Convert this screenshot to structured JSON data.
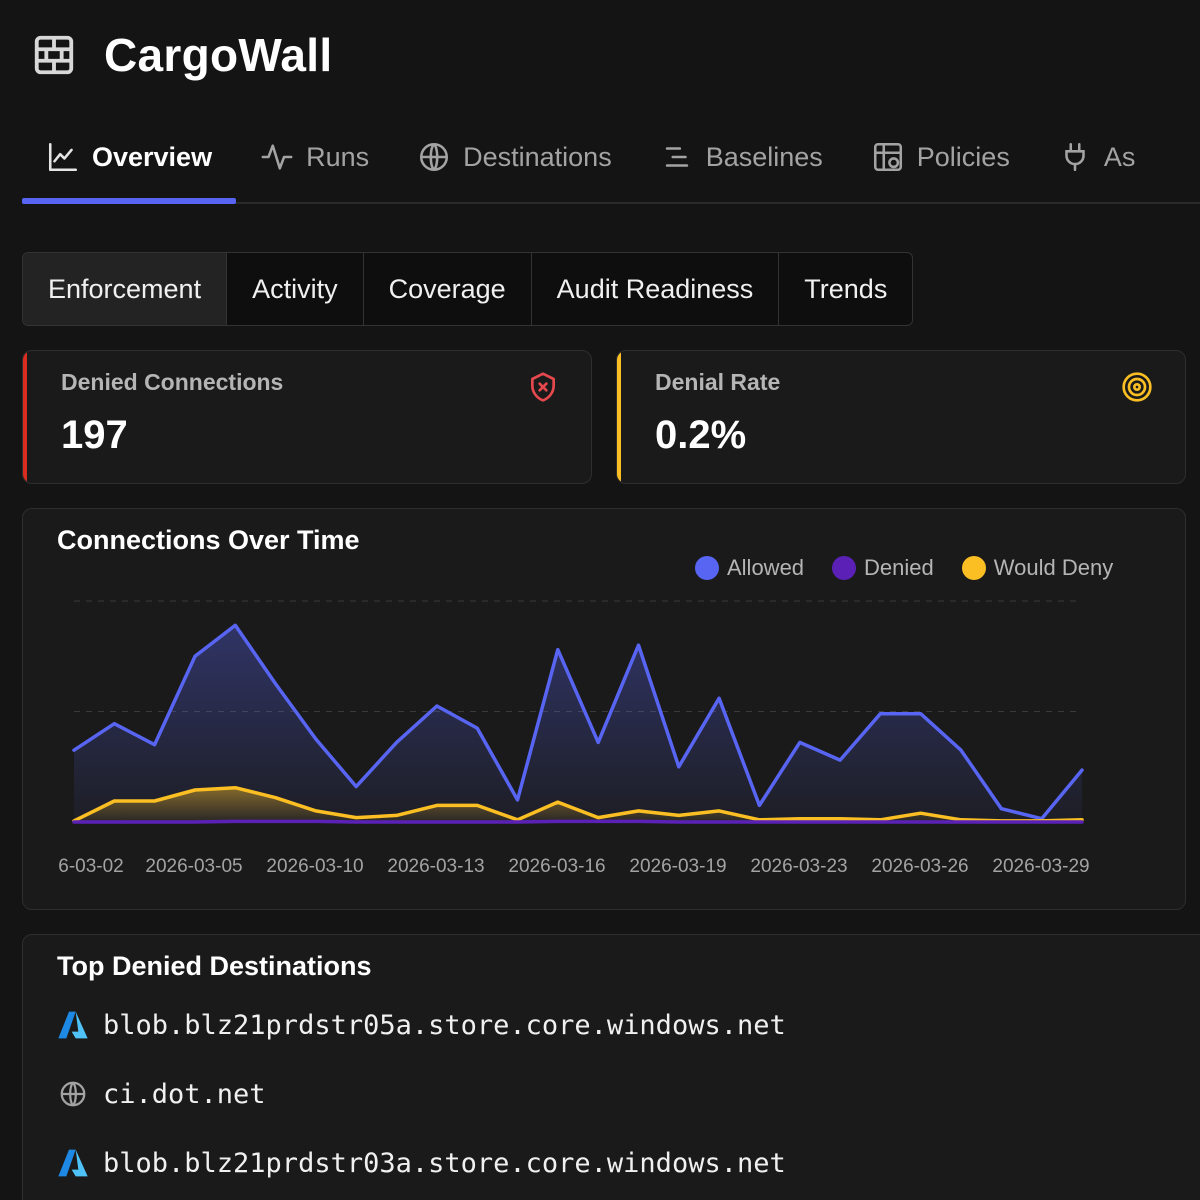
{
  "app": {
    "title": "CargoWall",
    "logo_icon": "brick-wall-icon"
  },
  "nav": {
    "tabs": [
      {
        "label": "Overview",
        "icon": "line-chart-icon",
        "active": true
      },
      {
        "label": "Runs",
        "icon": "activity-icon",
        "active": false
      },
      {
        "label": "Destinations",
        "icon": "globe-icon",
        "active": false
      },
      {
        "label": "Baselines",
        "icon": "align-lines-icon",
        "active": false
      },
      {
        "label": "Policies",
        "icon": "policy-grid-icon",
        "active": false
      },
      {
        "label": "As",
        "icon": "plug-icon",
        "active": false
      }
    ]
  },
  "subtabs": [
    {
      "label": "Enforcement",
      "active": true
    },
    {
      "label": "Activity",
      "active": false
    },
    {
      "label": "Coverage",
      "active": false
    },
    {
      "label": "Audit Readiness",
      "active": false
    },
    {
      "label": "Trends",
      "active": false
    }
  ],
  "stats": {
    "denied": {
      "label": "Denied Connections",
      "value": "197",
      "icon": "shield-x-icon",
      "accent": "#d92d20"
    },
    "rate": {
      "label": "Denial Rate",
      "value": "0.2%",
      "icon": "target-icon",
      "accent": "#fbbf24"
    }
  },
  "chart_title": "Connections Over Time",
  "legend": [
    {
      "name": "Allowed",
      "color": "#5865f2"
    },
    {
      "name": "Denied",
      "color": "#5b21b6"
    },
    {
      "name": "Would Deny",
      "color": "#fbbf24"
    }
  ],
  "chart_data": {
    "type": "area",
    "title": "Connections Over Time",
    "x_tick_labels": [
      "6-03-02",
      "2026-03-05",
      "2026-03-10",
      "2026-03-13",
      "2026-03-16",
      "2026-03-19",
      "2026-03-23",
      "2026-03-26",
      "2026-03-29"
    ],
    "ylim": [
      0,
      2000
    ],
    "grid": true,
    "legend_position": "top-right",
    "series": [
      {
        "name": "Allowed",
        "color": "#5865f2",
        "values": [
          650,
          890,
          700,
          1500,
          1780,
          1250,
          750,
          320,
          720,
          1050,
          850,
          200,
          1560,
          720,
          1600,
          500,
          1120,
          150,
          720,
          560,
          980,
          980,
          650,
          120,
          30,
          470
        ]
      },
      {
        "name": "Denied",
        "color": "#5b21b6",
        "values": [
          0,
          0,
          0,
          0,
          5,
          5,
          5,
          0,
          0,
          0,
          0,
          0,
          5,
          5,
          5,
          0,
          0,
          0,
          0,
          0,
          0,
          0,
          0,
          0,
          0,
          0
        ]
      },
      {
        "name": "Would Deny",
        "color": "#fbbf24",
        "values": [
          10,
          190,
          190,
          290,
          310,
          220,
          100,
          40,
          60,
          150,
          150,
          20,
          180,
          40,
          100,
          60,
          100,
          20,
          30,
          30,
          20,
          80,
          20,
          10,
          10,
          20
        ]
      }
    ]
  },
  "top_denied": {
    "title": "Top Denied Destinations",
    "items": [
      {
        "host": "blob.blz21prdstr05a.store.core.windows.net",
        "icon": "azure-icon"
      },
      {
        "host": "ci.dot.net",
        "icon": "globe-icon"
      },
      {
        "host": "blob.blz21prdstr03a.store.core.windows.net",
        "icon": "azure-icon"
      }
    ]
  }
}
